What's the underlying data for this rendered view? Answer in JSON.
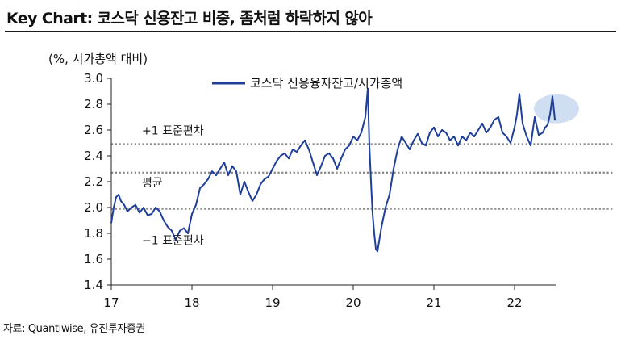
{
  "header": {
    "title": "Key Chart: 코스닥 신용잔고 비중, 좀처럼 하락하지 않아"
  },
  "footer": {
    "source": "자료: Quantiwise, 유진투자증권"
  },
  "chart_data": {
    "type": "line",
    "ylabel": "(%, 시가총액 대비)",
    "ylim": [
      1.4,
      3.0
    ],
    "yticks": [
      1.4,
      1.6,
      1.8,
      2.0,
      2.2,
      2.4,
      2.6,
      2.8,
      3.0
    ],
    "ytick_labels": [
      "1.4",
      "1.6",
      "1.8",
      "2.0",
      "2.2",
      "2.4",
      "2.6",
      "2.8",
      "3.0"
    ],
    "xlim": [
      2017.0,
      2022.52
    ],
    "xticks": [
      2017,
      2018,
      2019,
      2020,
      2021,
      2022
    ],
    "xtick_labels": [
      "17",
      "18",
      "19",
      "20",
      "21",
      "22"
    ],
    "legend_position": "top-center",
    "reference_lines": [
      {
        "label": "+1 표준편차",
        "value": 2.49
      },
      {
        "label": "평균",
        "value": 2.27
      },
      {
        "label": "−1 표준편차",
        "value": 1.99
      }
    ],
    "highlight": {
      "note": "latest point circled",
      "color": "#c7d8ef"
    },
    "series": [
      {
        "name": "코스닥 신용융자잔고/시가총액",
        "color": "#1f3f9a",
        "x": [
          2017.0,
          2017.03,
          2017.06,
          2017.09,
          2017.12,
          2017.16,
          2017.2,
          2017.25,
          2017.3,
          2017.35,
          2017.4,
          2017.45,
          2017.5,
          2017.55,
          2017.6,
          2017.65,
          2017.7,
          2017.75,
          2017.8,
          2017.85,
          2017.9,
          2017.95,
          2018.0,
          2018.05,
          2018.1,
          2018.15,
          2018.2,
          2018.25,
          2018.3,
          2018.35,
          2018.4,
          2018.45,
          2018.5,
          2018.55,
          2018.6,
          2018.65,
          2018.7,
          2018.75,
          2018.8,
          2018.85,
          2018.9,
          2018.95,
          2019.0,
          2019.05,
          2019.1,
          2019.15,
          2019.2,
          2019.25,
          2019.3,
          2019.35,
          2019.4,
          2019.45,
          2019.5,
          2019.55,
          2019.6,
          2019.65,
          2019.7,
          2019.75,
          2019.8,
          2019.85,
          2019.9,
          2019.95,
          2020.0,
          2020.05,
          2020.1,
          2020.15,
          2020.18,
          2020.2,
          2020.22,
          2020.24,
          2020.26,
          2020.28,
          2020.3,
          2020.35,
          2020.4,
          2020.45,
          2020.5,
          2020.55,
          2020.6,
          2020.65,
          2020.7,
          2020.75,
          2020.8,
          2020.85,
          2020.9,
          2020.95,
          2021.0,
          2021.05,
          2021.1,
          2021.15,
          2021.2,
          2021.25,
          2021.3,
          2021.35,
          2021.4,
          2021.45,
          2021.5,
          2021.55,
          2021.6,
          2021.65,
          2021.7,
          2021.75,
          2021.8,
          2021.85,
          2021.9,
          2021.95,
          2022.0,
          2022.03,
          2022.06,
          2022.1,
          2022.15,
          2022.2,
          2022.25,
          2022.3,
          2022.35,
          2022.38,
          2022.41,
          2022.44,
          2022.47,
          2022.5
        ],
        "y": [
          1.88,
          2.0,
          2.08,
          2.1,
          2.05,
          2.02,
          1.97,
          2.0,
          2.02,
          1.96,
          2.0,
          1.94,
          1.95,
          2.0,
          1.97,
          1.9,
          1.85,
          1.82,
          1.75,
          1.82,
          1.84,
          1.8,
          1.95,
          2.02,
          2.15,
          2.18,
          2.22,
          2.28,
          2.25,
          2.3,
          2.35,
          2.25,
          2.32,
          2.28,
          2.1,
          2.2,
          2.12,
          2.05,
          2.1,
          2.18,
          2.22,
          2.24,
          2.3,
          2.36,
          2.4,
          2.42,
          2.38,
          2.45,
          2.43,
          2.48,
          2.52,
          2.45,
          2.35,
          2.25,
          2.32,
          2.4,
          2.42,
          2.38,
          2.3,
          2.38,
          2.45,
          2.48,
          2.55,
          2.52,
          2.58,
          2.7,
          2.92,
          2.48,
          2.2,
          1.95,
          1.8,
          1.68,
          1.66,
          1.85,
          2.0,
          2.1,
          2.3,
          2.45,
          2.55,
          2.5,
          2.45,
          2.52,
          2.57,
          2.5,
          2.48,
          2.58,
          2.62,
          2.55,
          2.6,
          2.58,
          2.52,
          2.55,
          2.48,
          2.55,
          2.52,
          2.58,
          2.55,
          2.6,
          2.65,
          2.58,
          2.62,
          2.68,
          2.7,
          2.58,
          2.55,
          2.5,
          2.62,
          2.72,
          2.88,
          2.65,
          2.55,
          2.48,
          2.7,
          2.56,
          2.58,
          2.62,
          2.64,
          2.72,
          2.86,
          2.68
        ]
      }
    ]
  }
}
